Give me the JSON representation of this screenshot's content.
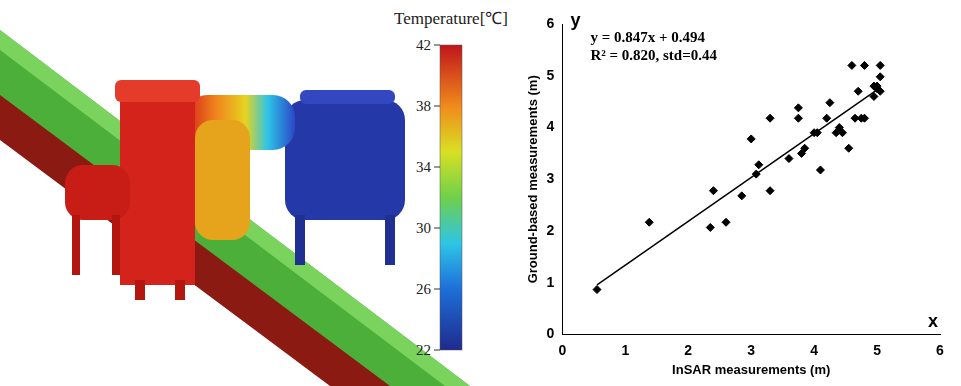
{
  "diagram": {
    "colorbar": {
      "title": "Temperature[℃]",
      "range": [
        22,
        42
      ],
      "ticks": [
        22,
        26,
        30,
        34,
        38,
        42
      ]
    }
  },
  "chart_data": {
    "type": "scatter",
    "x_label": "InSAR measurements (m)",
    "y_label": "Ground-based measurements (m)",
    "axis_letters": {
      "x": "x",
      "y": "y"
    },
    "annotations": [
      "y = 0.847x + 0.494",
      "R² = 0.820, std=0.44"
    ],
    "x": [
      0.55,
      1.38,
      2.35,
      2.4,
      2.6,
      2.85,
      3.0,
      3.08,
      3.12,
      3.3,
      3.3,
      3.6,
      3.75,
      3.75,
      3.8,
      3.85,
      4.0,
      4.05,
      4.1,
      4.2,
      4.25,
      4.35,
      4.4,
      4.45,
      4.55,
      4.6,
      4.65,
      4.7,
      4.75,
      4.8,
      4.8,
      4.95,
      4.95,
      5.0,
      5.0,
      5.05,
      5.05,
      5.05
    ],
    "values": [
      0.87,
      2.17,
      2.07,
      2.78,
      2.17,
      2.68,
      3.78,
      3.1,
      3.28,
      4.18,
      2.78,
      3.4,
      4.38,
      4.18,
      3.5,
      3.6,
      3.9,
      3.9,
      3.18,
      4.18,
      4.48,
      3.9,
      4.0,
      3.9,
      3.6,
      5.2,
      4.18,
      4.7,
      4.18,
      4.18,
      5.2,
      4.6,
      4.8,
      4.8,
      4.75,
      5.2,
      4.98,
      4.7
    ],
    "color": "#000000",
    "marker": "diamond",
    "fit": {
      "slope": 0.847,
      "intercept": 0.494,
      "x": [
        0.55,
        5.05
      ],
      "color": "#000000"
    },
    "xlim": [
      0,
      6
    ],
    "xticks": [
      0,
      1,
      2,
      3,
      4,
      5,
      6
    ],
    "ylim": [
      0,
      6
    ],
    "yticks": [
      0,
      1,
      2,
      3,
      4,
      5,
      6
    ],
    "grid": false
  }
}
